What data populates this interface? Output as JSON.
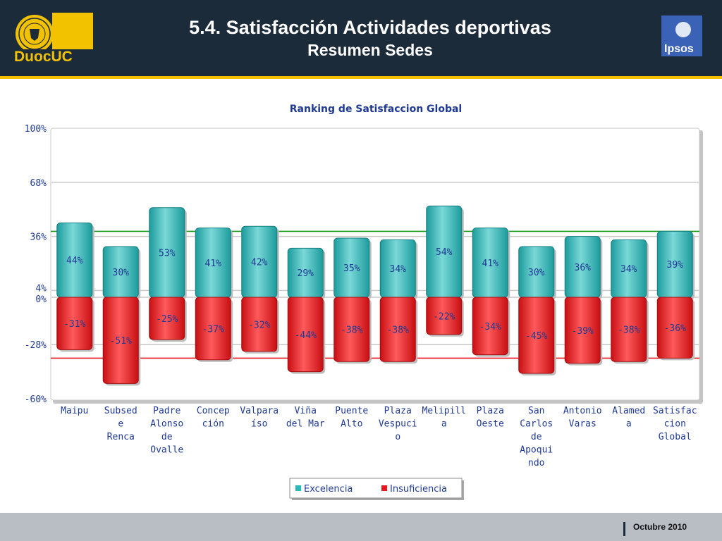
{
  "header": {
    "title": "5.4. Satisfacción Actividades deportivas",
    "subtitle": "Resumen Sedes",
    "logo_left_text": "DuocUC",
    "logo_right_text": "Ipsos"
  },
  "footer": {
    "date": "Octubre 2010"
  },
  "colors": {
    "header_bg": "#1c2b3a",
    "accent_rule": "#f2c200",
    "excelencia": "#2bb8b8",
    "insuficiencia": "#e8181c",
    "title_text": "#1f3a93"
  },
  "chart_data": {
    "type": "bar",
    "title": "Ranking de Satisfaccion Global",
    "categories": [
      "Maipu",
      "Subsede Renca",
      "Padre Alonso de Ovalle",
      "Concepción",
      "Valparaíso",
      "Viña del Mar",
      "Puente Alto",
      "Plaza Vespucio",
      "Melipilla",
      "Plaza Oeste",
      "San Carlos de Apoquindo",
      "Antonio Varas",
      "Alameda",
      "Satisfaccion Global"
    ],
    "category_lines": [
      [
        "Maipu"
      ],
      [
        "Subsed",
        "e",
        "Renca"
      ],
      [
        "Padre",
        "Alonso",
        "de",
        "Ovalle"
      ],
      [
        "Concep",
        "ción"
      ],
      [
        "Valpara",
        "íso"
      ],
      [
        "Viña",
        "del Mar"
      ],
      [
        "Puente",
        "Alto"
      ],
      [
        "Plaza",
        "Vespuci",
        "o"
      ],
      [
        "Melipill",
        "a"
      ],
      [
        "Plaza",
        "Oeste"
      ],
      [
        "San",
        "Carlos",
        "de",
        "Apoqui",
        "ndo"
      ],
      [
        "Antonio",
        "Varas"
      ],
      [
        "Alamed",
        "a"
      ],
      [
        "Satisfac",
        "cion",
        "Global"
      ]
    ],
    "series": [
      {
        "name": "Excelencia",
        "values": [
          44,
          30,
          53,
          41,
          42,
          29,
          35,
          34,
          54,
          41,
          30,
          36,
          34,
          39
        ],
        "labels": [
          "44%",
          "30%",
          "53%",
          "41%",
          "42%",
          "29%",
          "35%",
          "34%",
          "54%",
          "41%",
          "30%",
          "36%",
          "34%",
          "39%"
        ]
      },
      {
        "name": "Insuficiencia",
        "values": [
          -31,
          -51,
          -25,
          -37,
          -32,
          -44,
          -38,
          -38,
          -22,
          -34,
          -45,
          -39,
          -38,
          -36
        ],
        "labels": [
          "-31%",
          "-51%",
          "-25%",
          "-37%",
          "-32%",
          "-44%",
          "-38%",
          "-38%",
          "-22%",
          "-34%",
          "-45%",
          "-39%",
          "-38%",
          "-36%"
        ]
      }
    ],
    "ylim": [
      -60,
      100
    ],
    "y_ticks": [
      100,
      68,
      36,
      4,
      0,
      -28,
      -60
    ],
    "y_tick_labels": [
      "100%",
      "68%",
      "36%",
      "4%",
      "0%",
      "-28%",
      "-60%"
    ],
    "reference_lines": [
      {
        "value": 39,
        "color": "#1a9a1a"
      },
      {
        "value": -36,
        "color": "#e8181c"
      }
    ],
    "grid": true,
    "legend_position": "bottom-center"
  }
}
